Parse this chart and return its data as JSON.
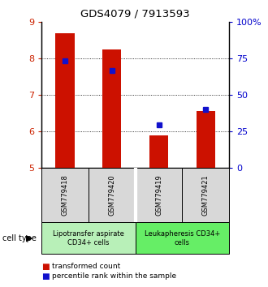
{
  "title": "GDS4079 / 7913593",
  "samples": [
    "GSM779418",
    "GSM779420",
    "GSM779419",
    "GSM779421"
  ],
  "red_values": [
    8.68,
    8.23,
    5.88,
    6.55
  ],
  "blue_values": [
    7.93,
    7.65,
    6.18,
    6.6
  ],
  "ylim": [
    5,
    9
  ],
  "yticks_left": [
    5,
    6,
    7,
    8,
    9
  ],
  "yticks_right_vals": [
    5,
    6,
    7,
    8,
    9
  ],
  "yticks_right_labels": [
    "0",
    "25",
    "50",
    "75",
    "100%"
  ],
  "groups": [
    {
      "label": "Lipotransfer aspirate\nCD34+ cells",
      "indices": [
        0,
        1
      ],
      "color": "#b8f0b8"
    },
    {
      "label": "Leukapheresis CD34+\ncells",
      "indices": [
        2,
        3
      ],
      "color": "#66ee66"
    }
  ],
  "legend_red": "transformed count",
  "legend_blue": "percentile rank within the sample",
  "bar_color": "#cc1100",
  "blue_color": "#1111cc",
  "bar_width": 0.4,
  "bg_color": "#d8d8d8",
  "left_tick_color": "#cc2200",
  "right_tick_color": "#0000cc",
  "cell_type_label": "cell type"
}
